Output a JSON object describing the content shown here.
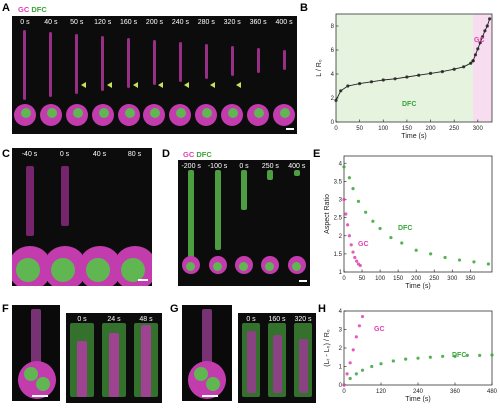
{
  "panels": {
    "a": "A",
    "b": "B",
    "c": "C",
    "d": "D",
    "e": "E",
    "f": "F",
    "g": "G",
    "h": "H"
  },
  "legend": {
    "gc": "GC",
    "dfc": "DFC"
  },
  "panel_a": {
    "times": [
      "0 s",
      "40 s",
      "50 s",
      "120 s",
      "160 s",
      "200 s",
      "240 s",
      "280 s",
      "320 s",
      "360 s",
      "400 s"
    ]
  },
  "panel_c": {
    "times": [
      "-40 s",
      "0 s",
      "40 s",
      "80 s"
    ]
  },
  "panel_d": {
    "times": [
      "-200 s",
      "-100 s",
      "0 s",
      "250 s",
      "400 s"
    ]
  },
  "panel_f": {
    "times": [
      "0 s",
      "24 s",
      "48 s"
    ]
  },
  "panel_g": {
    "times": [
      "0 s",
      "160 s",
      "320 s"
    ]
  },
  "colors": {
    "gc": "#e040b0",
    "dfc": "#3aa53a"
  },
  "chart_data": [
    {
      "id": "B",
      "type": "line",
      "xlabel": "Time (s)",
      "ylabel": "L / R₀",
      "xlim": [
        0,
        330
      ],
      "ylim": [
        0,
        9
      ],
      "xticks": [
        0,
        50,
        100,
        150,
        200,
        250,
        300
      ],
      "yticks": [
        0,
        2,
        4,
        6,
        8
      ],
      "series": [
        {
          "name": "DFC",
          "x": [
            0,
            10,
            25,
            50,
            75,
            100,
            125,
            150,
            175,
            200,
            225,
            250,
            270,
            285,
            290
          ],
          "y": [
            1.8,
            2.6,
            3.0,
            3.2,
            3.35,
            3.5,
            3.6,
            3.75,
            3.9,
            4.05,
            4.2,
            4.4,
            4.6,
            4.9,
            5.1
          ]
        },
        {
          "name": "GC",
          "x": [
            290,
            295,
            300,
            305,
            310,
            315,
            320,
            325
          ],
          "y": [
            5.1,
            5.6,
            6.1,
            6.6,
            7.1,
            7.6,
            8.0,
            8.6
          ]
        }
      ],
      "labels": {
        "dfc": "DFC",
        "gc": "GC"
      }
    },
    {
      "id": "E",
      "type": "scatter",
      "xlabel": "Time (s)",
      "ylabel": "Aspect Ratio",
      "xlim": [
        0,
        410
      ],
      "ylim": [
        1,
        4.2
      ],
      "xticks": [
        0,
        50,
        100,
        150,
        200,
        250,
        300,
        350
      ],
      "yticks": [
        1,
        1.5,
        2,
        2.5,
        3,
        3.5,
        4
      ],
      "series": [
        {
          "name": "DFC",
          "x": [
            0,
            15,
            25,
            40,
            60,
            80,
            100,
            130,
            160,
            200,
            240,
            280,
            320,
            360,
            400
          ],
          "y": [
            3.9,
            3.6,
            3.3,
            2.95,
            2.65,
            2.4,
            2.2,
            1.95,
            1.8,
            1.6,
            1.5,
            1.4,
            1.33,
            1.28,
            1.22
          ]
        },
        {
          "name": "GC",
          "x": [
            0,
            5,
            10,
            15,
            20,
            25,
            30,
            35,
            40,
            45
          ],
          "y": [
            3.0,
            2.6,
            2.3,
            2.0,
            1.75,
            1.55,
            1.4,
            1.3,
            1.22,
            1.18
          ]
        }
      ],
      "labels": {
        "dfc": "DFC",
        "gc": "GC"
      }
    },
    {
      "id": "H",
      "type": "scatter",
      "xlabel": "Time (s)",
      "ylabel": "(Lₜ - L₀) / R₀",
      "xlim": [
        0,
        480
      ],
      "ylim": [
        0,
        4
      ],
      "xticks": [
        0,
        120,
        240,
        360,
        480
      ],
      "yticks": [
        0,
        1,
        2,
        3,
        4
      ],
      "series": [
        {
          "name": "DFC",
          "x": [
            0,
            20,
            40,
            60,
            90,
            120,
            160,
            200,
            240,
            280,
            320,
            360,
            400,
            440,
            480
          ],
          "y": [
            0,
            0.35,
            0.6,
            0.8,
            1.0,
            1.15,
            1.3,
            1.4,
            1.45,
            1.5,
            1.55,
            1.55,
            1.6,
            1.6,
            1.62
          ]
        },
        {
          "name": "GC",
          "x": [
            0,
            10,
            20,
            30,
            40,
            50,
            60
          ],
          "y": [
            0,
            0.6,
            1.2,
            1.9,
            2.6,
            3.2,
            3.7
          ]
        }
      ],
      "labels": {
        "dfc": "DFC",
        "gc": "GC"
      }
    }
  ]
}
